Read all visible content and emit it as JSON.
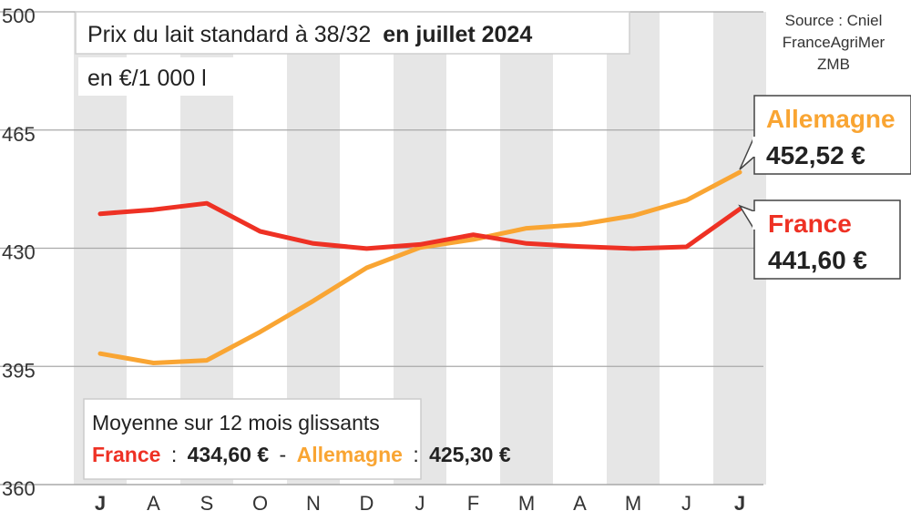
{
  "chart_data": {
    "type": "line",
    "title": "Prix du lait standard à 38/32",
    "title_bold": "en juillet 2024",
    "subtitle": "en €/1 000 l",
    "source_lines": [
      "Source : Cniel",
      "FranceAgriMer",
      "ZMB"
    ],
    "categories": [
      "J",
      "A",
      "S",
      "O",
      "N",
      "D",
      "J",
      "F",
      "M",
      "A",
      "M",
      "J",
      "J"
    ],
    "ylim": [
      360,
      500
    ],
    "yticks": [
      360,
      395,
      430,
      465,
      500
    ],
    "grid": true,
    "series": [
      {
        "name": "France",
        "color": "#ee3124",
        "values": [
          440.2,
          441.4,
          443.3,
          435.0,
          431.4,
          429.9,
          431.1,
          434.0,
          431.4,
          430.5,
          429.9,
          430.4,
          441.6
        ],
        "end_label": "441,60 €"
      },
      {
        "name": "Allemagne",
        "color": "#f9a533",
        "values": [
          398.8,
          396.0,
          396.8,
          405.2,
          414.4,
          424.2,
          430.2,
          432.6,
          435.9,
          437.0,
          439.6,
          444.2,
          452.5
        ],
        "end_label": "452,52 €"
      }
    ],
    "note": {
      "title": "Moyenne sur 12 mois glissants",
      "france_label": "France",
      "france_value": "434,60 €",
      "separator": "-",
      "germany_label": "Allemagne",
      "germany_value": "425,30 €"
    }
  }
}
